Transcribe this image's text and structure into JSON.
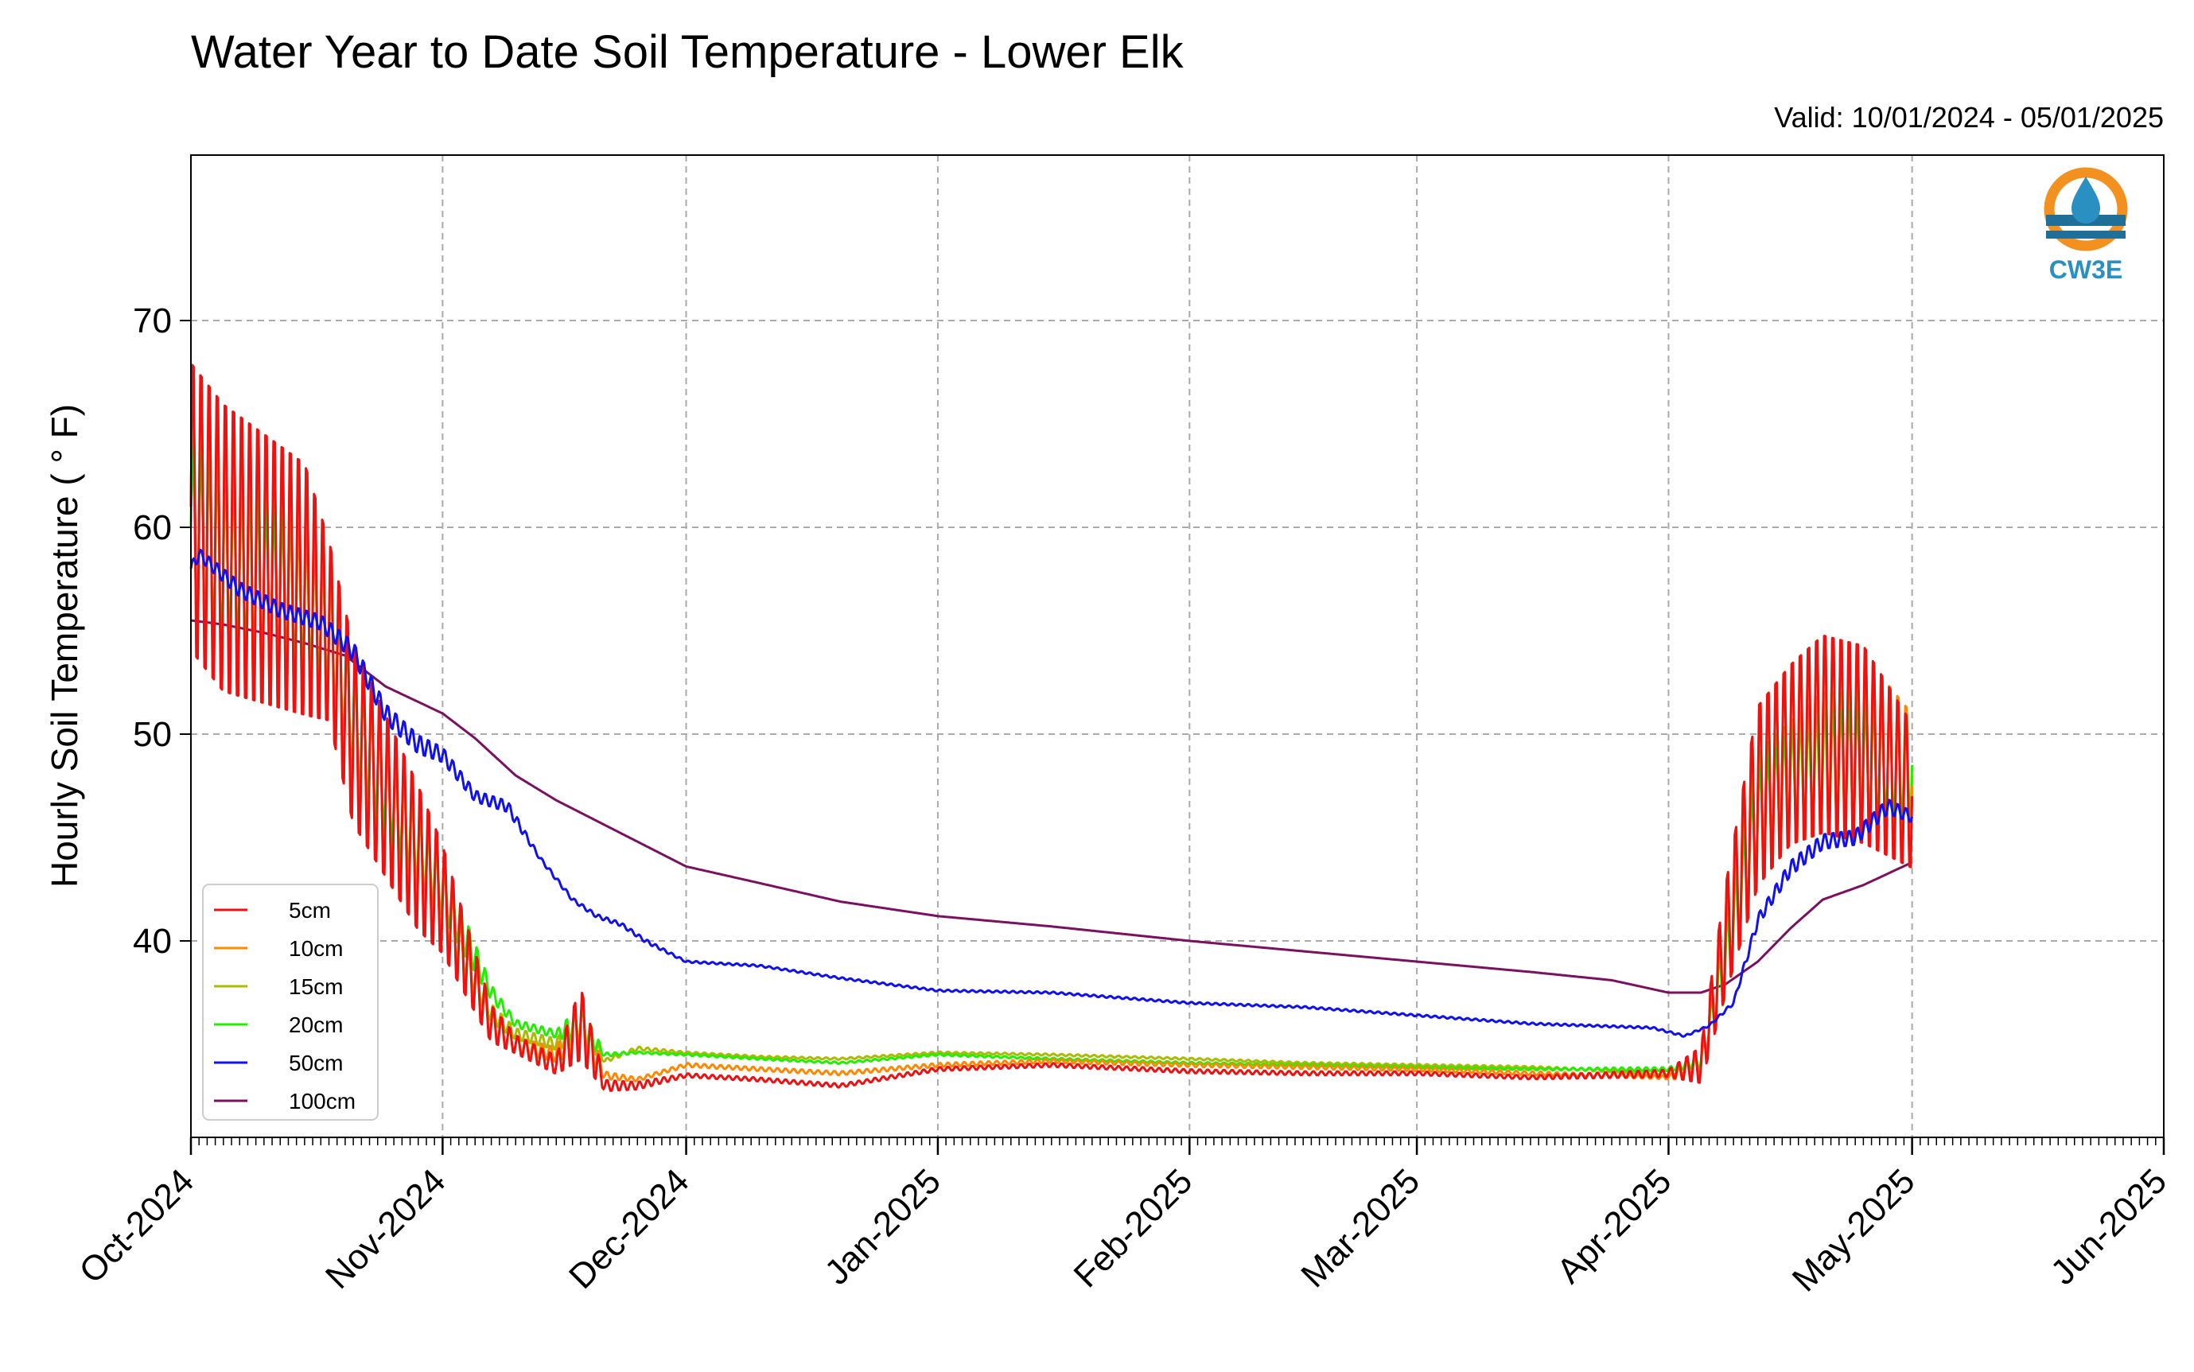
{
  "chart_data": {
    "type": "line",
    "title": "Water Year to Date Soil Temperature - Lower Elk",
    "subtitle": "Valid: 10/01/2024 - 05/01/2025",
    "ylabel": "Hourly Soil Temperature ( ° F)",
    "xlabel": "",
    "ylim": [
      30.5,
      78
    ],
    "xlim": [
      "2024-10-01",
      "2025-06-01"
    ],
    "grid": true,
    "legend_position": "lower-left",
    "ytick_labels": [
      "40",
      "50",
      "60",
      "70"
    ],
    "yticks": [
      40,
      50,
      60,
      70
    ],
    "xticks": [
      "2024-10-01",
      "2024-11-01",
      "2024-12-01",
      "2025-01-01",
      "2025-02-01",
      "2025-03-01",
      "2025-04-01",
      "2025-05-01",
      "2025-06-01"
    ],
    "xtick_labels": [
      "Oct-2024",
      "Nov-2024",
      "Dec-2024",
      "Jan-2025",
      "Feb-2025",
      "Mar-2025",
      "Apr-2025",
      "May-2025",
      "Jun-2025"
    ],
    "series": [
      {
        "name": "5cm",
        "color": "#ee1111",
        "x": [
          "2024-10-01",
          "2024-10-05",
          "2024-10-10",
          "2024-10-15",
          "2024-10-18",
          "2024-10-21",
          "2024-10-25",
          "2024-10-29",
          "2024-11-01",
          "2024-11-04",
          "2024-11-07",
          "2024-11-10",
          "2024-11-15",
          "2024-11-18",
          "2024-11-21",
          "2024-11-25",
          "2024-12-01",
          "2024-12-10",
          "2024-12-20",
          "2025-01-01",
          "2025-01-15",
          "2025-02-01",
          "2025-02-15",
          "2025-03-01",
          "2025-03-15",
          "2025-04-01",
          "2025-04-05",
          "2025-04-08",
          "2025-04-12",
          "2025-04-16",
          "2025-04-20",
          "2025-04-25",
          "2025-05-01"
        ],
        "mean": [
          61,
          59,
          58,
          57,
          55,
          50,
          47,
          44,
          42,
          39,
          36,
          35,
          34,
          36,
          33,
          33,
          33.5,
          33.3,
          33,
          33.8,
          34,
          33.7,
          33.6,
          33.6,
          33.4,
          33.6,
          34,
          40,
          47,
          49,
          50,
          49.5,
          47
        ],
        "amp": [
          8,
          8,
          7.5,
          7,
          5,
          5,
          4.5,
          4,
          3,
          2,
          1,
          0.5,
          0.5,
          2,
          0.3,
          0.2,
          0.1,
          0.1,
          0.1,
          0.1,
          0.1,
          0.1,
          0.1,
          0.1,
          0.1,
          0.2,
          1,
          3,
          5,
          5,
          5.5,
          5.5,
          4
        ]
      },
      {
        "name": "10cm",
        "color": "#ff8800",
        "x": [
          "2024-10-01",
          "2024-10-05",
          "2024-10-10",
          "2024-10-15",
          "2024-10-18",
          "2024-10-21",
          "2024-10-25",
          "2024-10-29",
          "2024-11-01",
          "2024-11-04",
          "2024-11-07",
          "2024-11-10",
          "2024-11-15",
          "2024-11-18",
          "2024-11-21",
          "2024-11-25",
          "2024-12-01",
          "2024-12-10",
          "2024-12-20",
          "2025-01-01",
          "2025-01-15",
          "2025-02-01",
          "2025-02-15",
          "2025-03-01",
          "2025-03-15",
          "2025-04-01",
          "2025-04-05",
          "2025-04-08",
          "2025-04-12",
          "2025-04-16",
          "2025-04-20",
          "2025-04-25",
          "2025-05-01"
        ],
        "mean": [
          61,
          59,
          58,
          57,
          55,
          50,
          47,
          44,
          42,
          39,
          36,
          35,
          34.5,
          36,
          33.5,
          33.3,
          34,
          33.8,
          33.6,
          34,
          34.2,
          34,
          33.9,
          33.8,
          33.6,
          33.4,
          34,
          40,
          47,
          49,
          50,
          49.5,
          47.5
        ],
        "amp": [
          7.5,
          7.5,
          7,
          6.5,
          5,
          4.5,
          4,
          3.5,
          2.5,
          1.5,
          0.8,
          0.4,
          0.4,
          1.5,
          0.2,
          0.1,
          0.1,
          0.1,
          0.1,
          0.1,
          0.1,
          0.1,
          0.1,
          0.1,
          0.1,
          0.1,
          0.8,
          3,
          5,
          5,
          5.5,
          5,
          4
        ]
      },
      {
        "name": "15cm",
        "color": "#aabb00",
        "x": [
          "2024-10-01",
          "2024-10-05",
          "2024-10-10",
          "2024-10-15",
          "2024-10-18",
          "2024-10-21",
          "2024-10-25",
          "2024-10-29",
          "2024-11-01",
          "2024-11-04",
          "2024-11-07",
          "2024-11-10",
          "2024-11-15",
          "2024-11-18",
          "2024-11-21",
          "2024-11-25",
          "2024-12-01",
          "2024-12-10",
          "2024-12-20",
          "2025-01-01",
          "2025-01-15",
          "2025-02-01",
          "2025-02-15",
          "2025-03-01",
          "2025-03-15",
          "2025-04-01",
          "2025-04-05",
          "2025-04-08",
          "2025-04-12",
          "2025-04-16",
          "2025-04-20",
          "2025-04-25",
          "2025-05-01"
        ],
        "mean": [
          60,
          58.5,
          57.5,
          56.5,
          55,
          50,
          47,
          44,
          42,
          39,
          36.5,
          35.5,
          35,
          36,
          34.2,
          34.8,
          34.6,
          34.4,
          34.3,
          34.6,
          34.5,
          34.3,
          34.1,
          34,
          33.9,
          33.6,
          34,
          39.5,
          46.5,
          48,
          49,
          49,
          48
        ],
        "amp": [
          5,
          5,
          4.5,
          4,
          3.5,
          3.5,
          3,
          2.5,
          2,
          1,
          0.5,
          0.3,
          0.3,
          1,
          0.1,
          0.1,
          0.05,
          0.05,
          0.05,
          0.05,
          0.05,
          0.05,
          0.05,
          0.05,
          0.05,
          0.1,
          0.5,
          2,
          3,
          3,
          3.5,
          3.5,
          3
        ]
      },
      {
        "name": "20cm",
        "color": "#22ee00",
        "x": [
          "2024-10-01",
          "2024-10-05",
          "2024-10-10",
          "2024-10-15",
          "2024-10-18",
          "2024-10-21",
          "2024-10-25",
          "2024-10-29",
          "2024-11-01",
          "2024-11-04",
          "2024-11-07",
          "2024-11-10",
          "2024-11-15",
          "2024-11-18",
          "2024-11-21",
          "2024-11-25",
          "2024-12-01",
          "2024-12-10",
          "2024-12-20",
          "2025-01-01",
          "2025-01-15",
          "2025-02-01",
          "2025-02-15",
          "2025-03-01",
          "2025-03-15",
          "2025-04-01",
          "2025-04-05",
          "2025-04-08",
          "2025-04-12",
          "2025-04-16",
          "2025-04-20",
          "2025-04-25",
          "2025-05-01"
        ],
        "mean": [
          60,
          58.5,
          57.5,
          56.5,
          55,
          50.5,
          47.5,
          44.5,
          42.5,
          40,
          37.5,
          36,
          35.5,
          36,
          34.5,
          34.6,
          34.5,
          34.3,
          34.1,
          34.5,
          34.3,
          34.1,
          34,
          33.9,
          33.8,
          33.8,
          34.2,
          39,
          46,
          48,
          48.5,
          48.5,
          48.5
        ],
        "amp": [
          4.5,
          4.5,
          4,
          3.5,
          3,
          3,
          2.5,
          2,
          1.5,
          1,
          0.4,
          0.2,
          0.2,
          1,
          0.1,
          0.05,
          0.05,
          0.05,
          0.05,
          0.05,
          0.05,
          0.05,
          0.05,
          0.05,
          0.05,
          0.1,
          0.4,
          2,
          2.5,
          2.5,
          3,
          3,
          3
        ]
      },
      {
        "name": "50cm",
        "color": "#1111ee",
        "x": [
          "2024-10-01",
          "2024-10-02",
          "2024-10-07",
          "2024-10-12",
          "2024-10-17",
          "2024-10-21",
          "2024-10-25",
          "2024-10-29",
          "2024-11-01",
          "2024-11-05",
          "2024-11-09",
          "2024-11-13",
          "2024-11-17",
          "2024-11-20",
          "2024-11-23",
          "2024-11-26",
          "2024-12-01",
          "2024-12-10",
          "2024-12-20",
          "2025-01-01",
          "2025-01-15",
          "2025-02-01",
          "2025-02-15",
          "2025-03-01",
          "2025-03-15",
          "2025-03-30",
          "2025-04-03",
          "2025-04-06",
          "2025-04-09",
          "2025-04-12",
          "2025-04-16",
          "2025-04-20",
          "2025-04-24",
          "2025-04-28",
          "2025-05-01"
        ],
        "mean": [
          58,
          58.7,
          57,
          56,
          55.4,
          54,
          51,
          49.5,
          49,
          47,
          46.5,
          44,
          42,
          41.2,
          40.8,
          40,
          39,
          38.8,
          38.2,
          37.6,
          37.5,
          37,
          36.8,
          36.4,
          36,
          35.8,
          35.4,
          35.9,
          37,
          41,
          43.5,
          44.8,
          45,
          46.5,
          46
        ],
        "amp": [
          0.3,
          0.3,
          0.4,
          0.4,
          0.4,
          0.5,
          0.5,
          0.5,
          0.4,
          0.3,
          0.3,
          0.1,
          0.1,
          0.1,
          0.1,
          0.1,
          0.05,
          0.05,
          0.05,
          0.05,
          0.05,
          0.05,
          0.05,
          0.05,
          0.05,
          0.05,
          0.05,
          0.05,
          0.1,
          0.3,
          0.4,
          0.4,
          0.4,
          0.4,
          0.3
        ]
      },
      {
        "name": "100cm",
        "color": "#7a1060",
        "x": [
          "2024-10-01",
          "2024-10-05",
          "2024-10-10",
          "2024-10-15",
          "2024-10-20",
          "2024-10-25",
          "2024-11-01",
          "2024-11-05",
          "2024-11-10",
          "2024-11-15",
          "2024-11-20",
          "2024-11-25",
          "2024-12-01",
          "2024-12-10",
          "2024-12-20",
          "2025-01-01",
          "2025-01-15",
          "2025-02-01",
          "2025-02-15",
          "2025-03-01",
          "2025-03-15",
          "2025-03-25",
          "2025-04-01",
          "2025-04-05",
          "2025-04-08",
          "2025-04-12",
          "2025-04-16",
          "2025-04-20",
          "2025-04-25",
          "2025-05-01"
        ],
        "mean": [
          55.5,
          55.3,
          54.9,
          54.4,
          53.8,
          52.3,
          51,
          49.8,
          48,
          46.8,
          45.8,
          44.8,
          43.6,
          42.8,
          41.9,
          41.2,
          40.7,
          40,
          39.5,
          39,
          38.5,
          38.1,
          37.5,
          37.5,
          37.9,
          39,
          40.6,
          42,
          42.7,
          43.8
        ],
        "amp": [
          0,
          0,
          0,
          0,
          0,
          0,
          0,
          0,
          0,
          0,
          0,
          0,
          0,
          0,
          0,
          0,
          0,
          0,
          0,
          0,
          0,
          0,
          0,
          0,
          0,
          0,
          0,
          0,
          0,
          0
        ]
      }
    ]
  },
  "logo": {
    "text": "CW3E",
    "ring_color": "#f29120",
    "drop_color": "#2a8fc1",
    "wave_color": "#1f6f98"
  }
}
